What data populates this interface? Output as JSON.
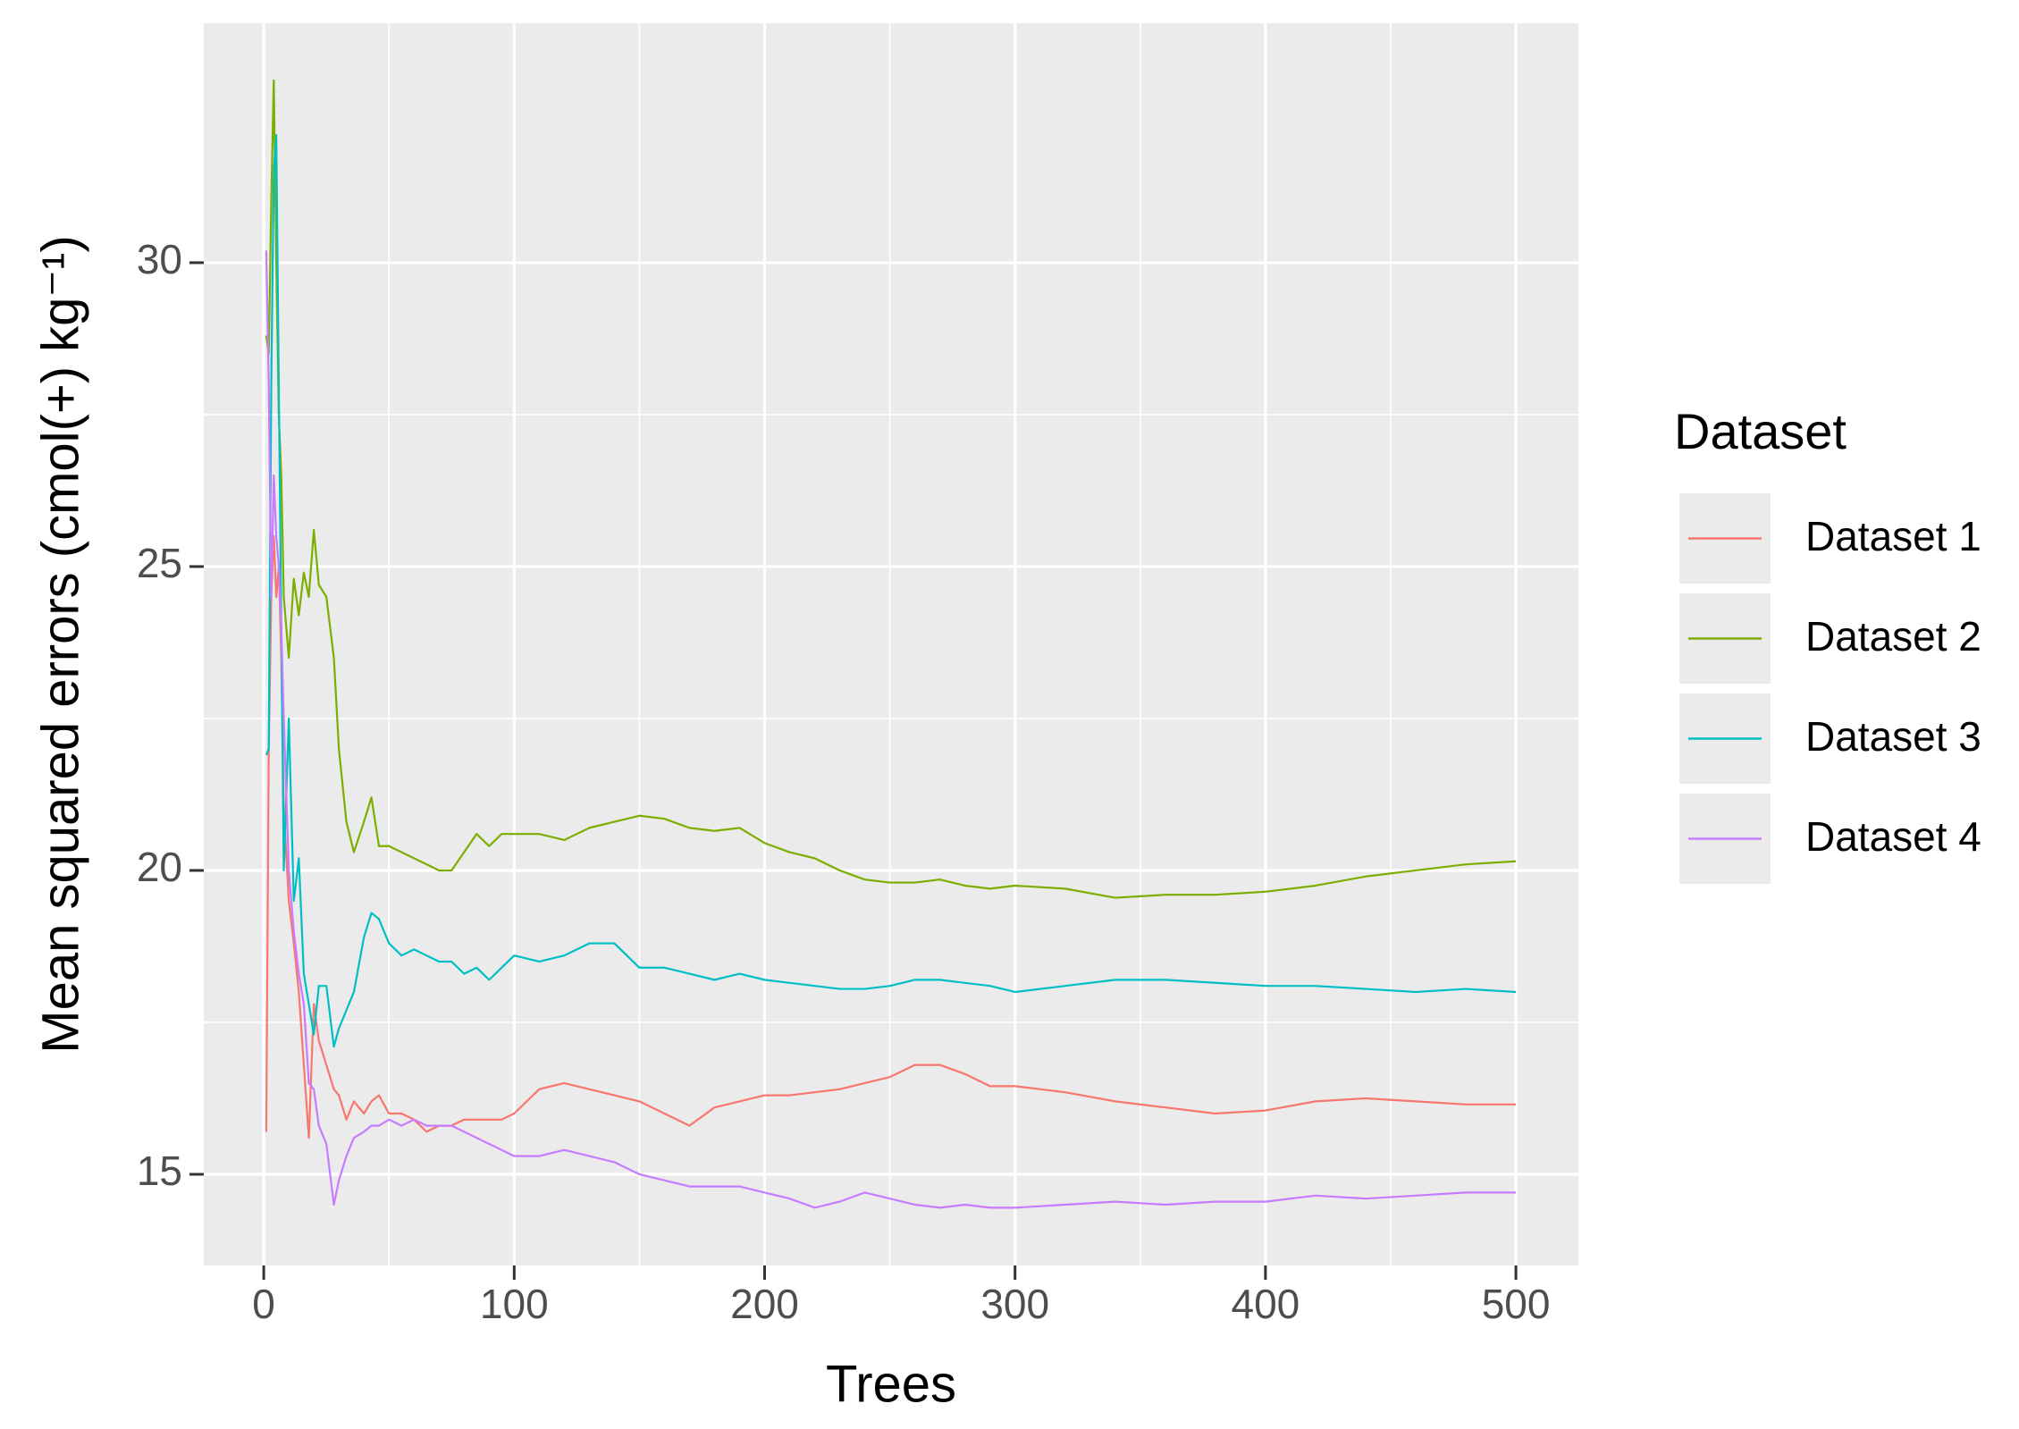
{
  "chart_data": {
    "type": "line",
    "x_label": "Trees",
    "y_label": "Mean squared errors (cmol(+) kg⁻¹)",
    "legend_title": "Dataset",
    "legend": "right",
    "grid": true,
    "minor_grid": true,
    "xlim": [
      -23.95,
      524.95
    ],
    "xticks": [
      0,
      100,
      200,
      300,
      400,
      500
    ],
    "ylim": [
      13.5,
      33.94
    ],
    "yticks": [
      15,
      20,
      25,
      30
    ],
    "x": [
      1,
      2,
      3,
      4,
      5,
      6,
      7,
      8,
      10,
      12,
      14,
      16,
      18,
      20,
      22,
      25,
      28,
      30,
      33,
      36,
      40,
      43,
      46,
      50,
      55,
      60,
      65,
      70,
      75,
      80,
      85,
      90,
      95,
      100,
      110,
      120,
      130,
      140,
      150,
      160,
      170,
      180,
      190,
      200,
      210,
      220,
      230,
      240,
      250,
      260,
      270,
      280,
      290,
      300,
      320,
      340,
      360,
      380,
      400,
      420,
      440,
      460,
      480,
      500
    ],
    "series": [
      {
        "name": "Dataset 1",
        "color": "#F8766D",
        "values": [
          15.7,
          22,
          24.5,
          25.5,
          24.5,
          25,
          23.5,
          21,
          19.5,
          18.8,
          18.0,
          16.8,
          15.6,
          17.8,
          17.2,
          16.8,
          16.4,
          16.3,
          15.9,
          16.2,
          16.0,
          16.2,
          16.3,
          16.0,
          16.0,
          15.9,
          15.7,
          15.8,
          15.8,
          15.9,
          15.9,
          15.9,
          15.9,
          16.0,
          16.4,
          16.5,
          16.4,
          16.3,
          16.2,
          16.0,
          15.8,
          16.1,
          16.2,
          16.3,
          16.3,
          16.35,
          16.4,
          16.5,
          16.6,
          16.8,
          16.8,
          16.65,
          16.45,
          16.45,
          16.35,
          16.2,
          16.1,
          16.0,
          16.05,
          16.2,
          16.25,
          16.2,
          16.15,
          16.15
        ]
      },
      {
        "name": "Dataset 2",
        "color": "#7CAE00",
        "values": [
          28.8,
          28.5,
          31,
          33,
          30,
          27.5,
          26.5,
          24.5,
          23.5,
          24.8,
          24.2,
          24.9,
          24.5,
          25.6,
          24.7,
          24.5,
          23.5,
          22,
          20.8,
          20.3,
          20.8,
          21.2,
          20.4,
          20.4,
          20.3,
          20.2,
          20.1,
          20.0,
          20.0,
          20.3,
          20.6,
          20.4,
          20.6,
          20.6,
          20.6,
          20.5,
          20.7,
          20.8,
          20.9,
          20.85,
          20.7,
          20.65,
          20.7,
          20.45,
          20.3,
          20.2,
          20.0,
          19.85,
          19.8,
          19.8,
          19.85,
          19.75,
          19.7,
          19.75,
          19.7,
          19.55,
          19.6,
          19.6,
          19.65,
          19.75,
          19.9,
          20.0,
          20.1,
          20.15
        ]
      },
      {
        "name": "Dataset 3",
        "color": "#00BFC4",
        "values": [
          21.9,
          22,
          28,
          31.5,
          32.1,
          28,
          24,
          20,
          22.5,
          19.5,
          20.2,
          18.3,
          17.8,
          17.3,
          18.1,
          18.1,
          17.1,
          17.4,
          17.7,
          18.0,
          18.9,
          19.3,
          19.2,
          18.8,
          18.6,
          18.7,
          18.6,
          18.5,
          18.5,
          18.3,
          18.4,
          18.2,
          18.4,
          18.6,
          18.5,
          18.6,
          18.8,
          18.8,
          18.4,
          18.4,
          18.3,
          18.2,
          18.3,
          18.2,
          18.15,
          18.1,
          18.05,
          18.05,
          18.1,
          18.2,
          18.2,
          18.15,
          18.1,
          18.0,
          18.1,
          18.2,
          18.2,
          18.15,
          18.1,
          18.1,
          18.05,
          18.0,
          18.05,
          18.0
        ]
      },
      {
        "name": "Dataset 4",
        "color": "#C77CFF",
        "values": [
          30.2,
          28,
          24.5,
          26.5,
          25.5,
          25,
          24,
          22.5,
          20,
          19.0,
          18.3,
          17.8,
          16.5,
          16.4,
          15.8,
          15.5,
          14.5,
          14.9,
          15.3,
          15.6,
          15.7,
          15.8,
          15.8,
          15.9,
          15.8,
          15.9,
          15.8,
          15.8,
          15.8,
          15.7,
          15.6,
          15.5,
          15.4,
          15.3,
          15.3,
          15.4,
          15.3,
          15.2,
          15.0,
          14.9,
          14.8,
          14.8,
          14.8,
          14.7,
          14.6,
          14.45,
          14.55,
          14.7,
          14.6,
          14.5,
          14.45,
          14.5,
          14.45,
          14.45,
          14.5,
          14.55,
          14.5,
          14.55,
          14.55,
          14.65,
          14.6,
          14.65,
          14.7,
          14.7
        ]
      }
    ]
  }
}
